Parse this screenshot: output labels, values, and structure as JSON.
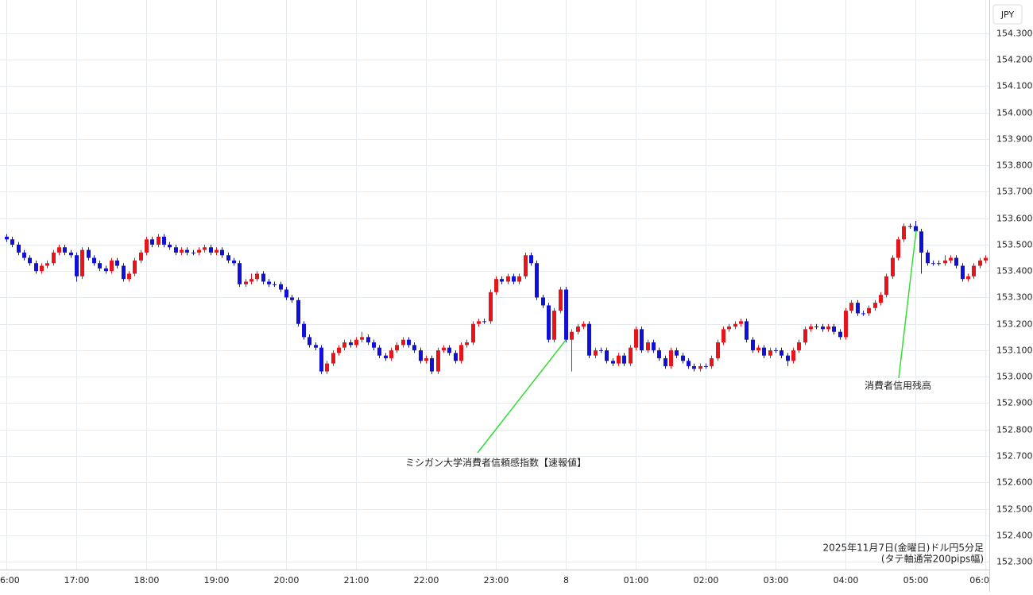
{
  "chart_data": {
    "type": "candlestick",
    "currency": "JPY",
    "up_color": "#e8141c",
    "down_color": "#1010d8",
    "grid": true,
    "xlim": [
      -1.09,
      168.7
    ],
    "ylim": [
      152.27,
      154.426
    ],
    "xticks": [
      {
        "value": 0,
        "label": "6:00"
      },
      {
        "value": 12,
        "label": "17:00"
      },
      {
        "value": 24,
        "label": "18:00"
      },
      {
        "value": 36,
        "label": "19:00"
      },
      {
        "value": 48,
        "label": "20:00"
      },
      {
        "value": 60,
        "label": "21:00"
      },
      {
        "value": 72,
        "label": "22:00"
      },
      {
        "value": 84,
        "label": "23:00"
      },
      {
        "value": 96,
        "label": "8"
      },
      {
        "value": 108,
        "label": "01:00"
      },
      {
        "value": 120,
        "label": "02:00"
      },
      {
        "value": 132,
        "label": "03:00"
      },
      {
        "value": 144,
        "label": "04:00"
      },
      {
        "value": 156,
        "label": "05:00"
      },
      {
        "value": 168,
        "label": "06:0"
      }
    ],
    "yticks": [
      {
        "value": 152.3,
        "label": "152.300"
      },
      {
        "value": 152.4,
        "label": "152.400"
      },
      {
        "value": 152.5,
        "label": "152.500"
      },
      {
        "value": 152.6,
        "label": "152.600"
      },
      {
        "value": 152.7,
        "label": "152.700"
      },
      {
        "value": 152.8,
        "label": "152.800"
      },
      {
        "value": 152.9,
        "label": "152.900"
      },
      {
        "value": 153.0,
        "label": "153.000"
      },
      {
        "value": 153.1,
        "label": "153.100"
      },
      {
        "value": 153.2,
        "label": "153.200"
      },
      {
        "value": 153.3,
        "label": "153.300"
      },
      {
        "value": 153.4,
        "label": "153.400"
      },
      {
        "value": 153.5,
        "label": "153.500"
      },
      {
        "value": 153.6,
        "label": "153.600"
      },
      {
        "value": 153.7,
        "label": "153.700"
      },
      {
        "value": 153.8,
        "label": "153.800"
      },
      {
        "value": 153.9,
        "label": "153.900"
      },
      {
        "value": 154.0,
        "label": "154.000"
      },
      {
        "value": 154.1,
        "label": "154.100"
      },
      {
        "value": 154.2,
        "label": "154.200"
      },
      {
        "value": 154.3,
        "label": "154.300"
      }
    ],
    "annotations": [
      {
        "text": "ミシガン大学消費者信頼感指数【速報値】"
      },
      {
        "text": "消費者信用残高"
      }
    ],
    "note": [
      "2025年11月7日(金曜日)ドル円5分足",
      "(タテ軸通常200pips幅)"
    ],
    "open": [
      153.53,
      153.52,
      153.5,
      153.47,
      153.45,
      153.43,
      153.4,
      153.42,
      153.43,
      153.47,
      153.49,
      153.47,
      153.46,
      153.38,
      153.48,
      153.45,
      153.43,
      153.41,
      153.4,
      153.44,
      153.42,
      153.37,
      153.39,
      153.44,
      153.47,
      153.52,
      153.5,
      153.53,
      153.5,
      153.49,
      153.47,
      153.48,
      153.47,
      153.47,
      153.48,
      153.49,
      153.47,
      153.48,
      153.46,
      153.44,
      153.43,
      153.35,
      153.36,
      153.37,
      153.39,
      153.36,
      153.35,
      153.35,
      153.33,
      153.3,
      153.29,
      153.2,
      153.15,
      153.12,
      153.11,
      153.02,
      153.05,
      153.09,
      153.11,
      153.13,
      153.12,
      153.14,
      153.15,
      153.13,
      153.11,
      153.08,
      153.07,
      153.1,
      153.12,
      153.14,
      153.12,
      153.1,
      153.06,
      153.07,
      153.02,
      153.1,
      153.11,
      153.09,
      153.06,
      153.12,
      153.13,
      153.2,
      153.21,
      153.21,
      153.32,
      153.37,
      153.36,
      153.38,
      153.36,
      153.38,
      153.46,
      153.43,
      153.3,
      153.27,
      153.14,
      153.25,
      153.33,
      153.14,
      153.17,
      153.19,
      153.2,
      153.08,
      153.1,
      153.1,
      153.06,
      153.05,
      153.08,
      153.05,
      153.11,
      153.18,
      153.1,
      153.13,
      153.1,
      153.07,
      153.04,
      153.1,
      153.08,
      153.06,
      153.04,
      153.03,
      153.04,
      153.04,
      153.07,
      153.13,
      153.18,
      153.19,
      153.2,
      153.21,
      153.14,
      153.1,
      153.11,
      153.08,
      153.1,
      153.1,
      153.08,
      153.06,
      153.1,
      153.13,
      153.18,
      153.19,
      153.19,
      153.18,
      153.19,
      153.17,
      153.15,
      153.25,
      153.28,
      153.24,
      153.24,
      153.26,
      153.28,
      153.31,
      153.38,
      153.45,
      153.52,
      153.57,
      153.57,
      153.55,
      153.47,
      153.43,
      153.43,
      153.43,
      153.44,
      153.45,
      153.42,
      153.37,
      153.38,
      153.42,
      153.44
    ],
    "high": [
      153.54,
      153.53,
      153.51,
      153.48,
      153.46,
      153.44,
      153.43,
      153.44,
      153.48,
      153.5,
      153.5,
      153.48,
      153.47,
      153.49,
      153.49,
      153.46,
      153.44,
      153.42,
      153.45,
      153.45,
      153.43,
      153.4,
      153.45,
      153.48,
      153.53,
      153.53,
      153.54,
      153.54,
      153.51,
      153.5,
      153.49,
      153.49,
      153.48,
      153.49,
      153.5,
      153.5,
      153.49,
      153.49,
      153.47,
      153.45,
      153.44,
      153.37,
      153.39,
      153.4,
      153.4,
      153.37,
      153.36,
      153.36,
      153.34,
      153.31,
      153.3,
      153.21,
      153.16,
      153.13,
      153.12,
      153.06,
      153.1,
      153.12,
      153.14,
      153.14,
      153.15,
      153.17,
      153.16,
      153.14,
      153.12,
      153.09,
      153.11,
      153.13,
      153.15,
      153.15,
      153.13,
      153.11,
      153.08,
      153.08,
      153.11,
      153.12,
      153.12,
      153.1,
      153.13,
      153.14,
      153.21,
      153.22,
      153.22,
      153.33,
      153.38,
      153.38,
      153.39,
      153.39,
      153.39,
      153.47,
      153.47,
      153.44,
      153.31,
      153.28,
      153.26,
      153.34,
      153.34,
      153.18,
      153.2,
      153.21,
      153.21,
      153.11,
      153.11,
      153.11,
      153.07,
      153.09,
      153.09,
      153.12,
      153.19,
      153.19,
      153.14,
      153.14,
      153.11,
      153.08,
      153.11,
      153.11,
      153.09,
      153.07,
      153.05,
      153.05,
      153.05,
      153.08,
      153.14,
      153.19,
      153.2,
      153.21,
      153.22,
      153.22,
      153.15,
      153.12,
      153.12,
      153.11,
      153.11,
      153.11,
      153.09,
      153.11,
      153.14,
      153.19,
      153.2,
      153.2,
      153.2,
      153.2,
      153.2,
      153.18,
      153.26,
      153.29,
      153.29,
      153.25,
      153.27,
      153.29,
      153.32,
      153.39,
      153.46,
      153.53,
      153.58,
      153.58,
      153.59,
      153.56,
      153.48,
      153.44,
      153.44,
      153.46,
      153.46,
      153.46,
      153.43,
      153.39,
      153.43,
      153.45,
      153.46
    ],
    "low": [
      153.51,
      153.49,
      153.46,
      153.44,
      153.42,
      153.39,
      153.39,
      153.41,
      153.42,
      153.46,
      153.46,
      153.45,
      153.36,
      153.37,
      153.44,
      153.42,
      153.4,
      153.39,
      153.39,
      153.41,
      153.36,
      153.36,
      153.38,
      153.43,
      153.46,
      153.49,
      153.49,
      153.49,
      153.48,
      153.46,
      153.46,
      153.46,
      153.46,
      153.46,
      153.47,
      153.46,
      153.46,
      153.45,
      153.43,
      153.42,
      153.34,
      153.34,
      153.35,
      153.36,
      153.35,
      153.34,
      153.34,
      153.32,
      153.29,
      153.28,
      153.19,
      153.14,
      153.11,
      153.1,
      153.01,
      153.01,
      153.04,
      153.08,
      153.1,
      153.11,
      153.11,
      153.13,
      153.12,
      153.1,
      153.07,
      153.06,
      153.06,
      153.09,
      153.11,
      153.11,
      153.09,
      153.05,
      153.05,
      153.01,
      153.01,
      153.09,
      153.08,
      153.05,
      153.05,
      153.11,
      153.12,
      153.19,
      153.2,
      153.2,
      153.31,
      153.35,
      153.35,
      153.35,
      153.35,
      153.37,
      153.42,
      153.29,
      153.26,
      153.13,
      153.13,
      153.24,
      153.13,
      153.02,
      153.16,
      153.18,
      153.07,
      153.07,
      153.09,
      153.05,
      153.04,
      153.04,
      153.04,
      153.04,
      153.1,
      153.09,
      153.09,
      153.09,
      153.06,
      153.03,
      153.03,
      153.07,
      153.05,
      153.03,
      153.02,
      153.02,
      153.03,
      153.03,
      153.06,
      153.12,
      153.17,
      153.18,
      153.19,
      153.13,
      153.09,
      153.09,
      153.07,
      153.07,
      153.09,
      153.07,
      153.04,
      153.05,
      153.09,
      153.12,
      153.17,
      153.18,
      153.17,
      153.17,
      153.16,
      153.14,
      153.14,
      153.24,
      153.23,
      153.23,
      153.23,
      153.25,
      153.27,
      153.3,
      153.37,
      153.44,
      153.51,
      153.56,
      153.54,
      153.39,
      153.42,
      153.42,
      153.42,
      153.42,
      153.43,
      153.41,
      153.36,
      153.36,
      153.37,
      153.41,
      153.43
    ],
    "close": [
      153.52,
      153.5,
      153.47,
      153.45,
      153.43,
      153.4,
      153.42,
      153.43,
      153.47,
      153.49,
      153.47,
      153.46,
      153.38,
      153.48,
      153.45,
      153.43,
      153.41,
      153.4,
      153.44,
      153.42,
      153.37,
      153.39,
      153.44,
      153.47,
      153.52,
      153.5,
      153.53,
      153.5,
      153.49,
      153.47,
      153.48,
      153.47,
      153.47,
      153.48,
      153.49,
      153.47,
      153.48,
      153.46,
      153.44,
      153.43,
      153.35,
      153.36,
      153.37,
      153.39,
      153.36,
      153.35,
      153.35,
      153.33,
      153.3,
      153.29,
      153.2,
      153.15,
      153.12,
      153.11,
      153.02,
      153.05,
      153.09,
      153.11,
      153.13,
      153.12,
      153.14,
      153.15,
      153.13,
      153.11,
      153.08,
      153.07,
      153.1,
      153.12,
      153.14,
      153.12,
      153.1,
      153.06,
      153.07,
      153.02,
      153.1,
      153.11,
      153.09,
      153.06,
      153.12,
      153.13,
      153.2,
      153.21,
      153.21,
      153.32,
      153.37,
      153.36,
      153.38,
      153.36,
      153.38,
      153.46,
      153.43,
      153.3,
      153.27,
      153.14,
      153.25,
      153.33,
      153.14,
      153.17,
      153.19,
      153.2,
      153.08,
      153.1,
      153.1,
      153.06,
      153.05,
      153.08,
      153.05,
      153.11,
      153.18,
      153.1,
      153.13,
      153.1,
      153.07,
      153.04,
      153.1,
      153.08,
      153.06,
      153.04,
      153.03,
      153.04,
      153.04,
      153.07,
      153.13,
      153.18,
      153.19,
      153.2,
      153.21,
      153.14,
      153.1,
      153.11,
      153.08,
      153.1,
      153.1,
      153.08,
      153.06,
      153.1,
      153.13,
      153.18,
      153.19,
      153.19,
      153.18,
      153.19,
      153.17,
      153.15,
      153.25,
      153.28,
      153.24,
      153.24,
      153.26,
      153.28,
      153.31,
      153.38,
      153.45,
      153.52,
      153.57,
      153.57,
      153.55,
      153.47,
      153.43,
      153.43,
      153.43,
      153.44,
      153.45,
      153.42,
      153.37,
      153.38,
      153.42,
      153.44,
      153.45
    ]
  }
}
